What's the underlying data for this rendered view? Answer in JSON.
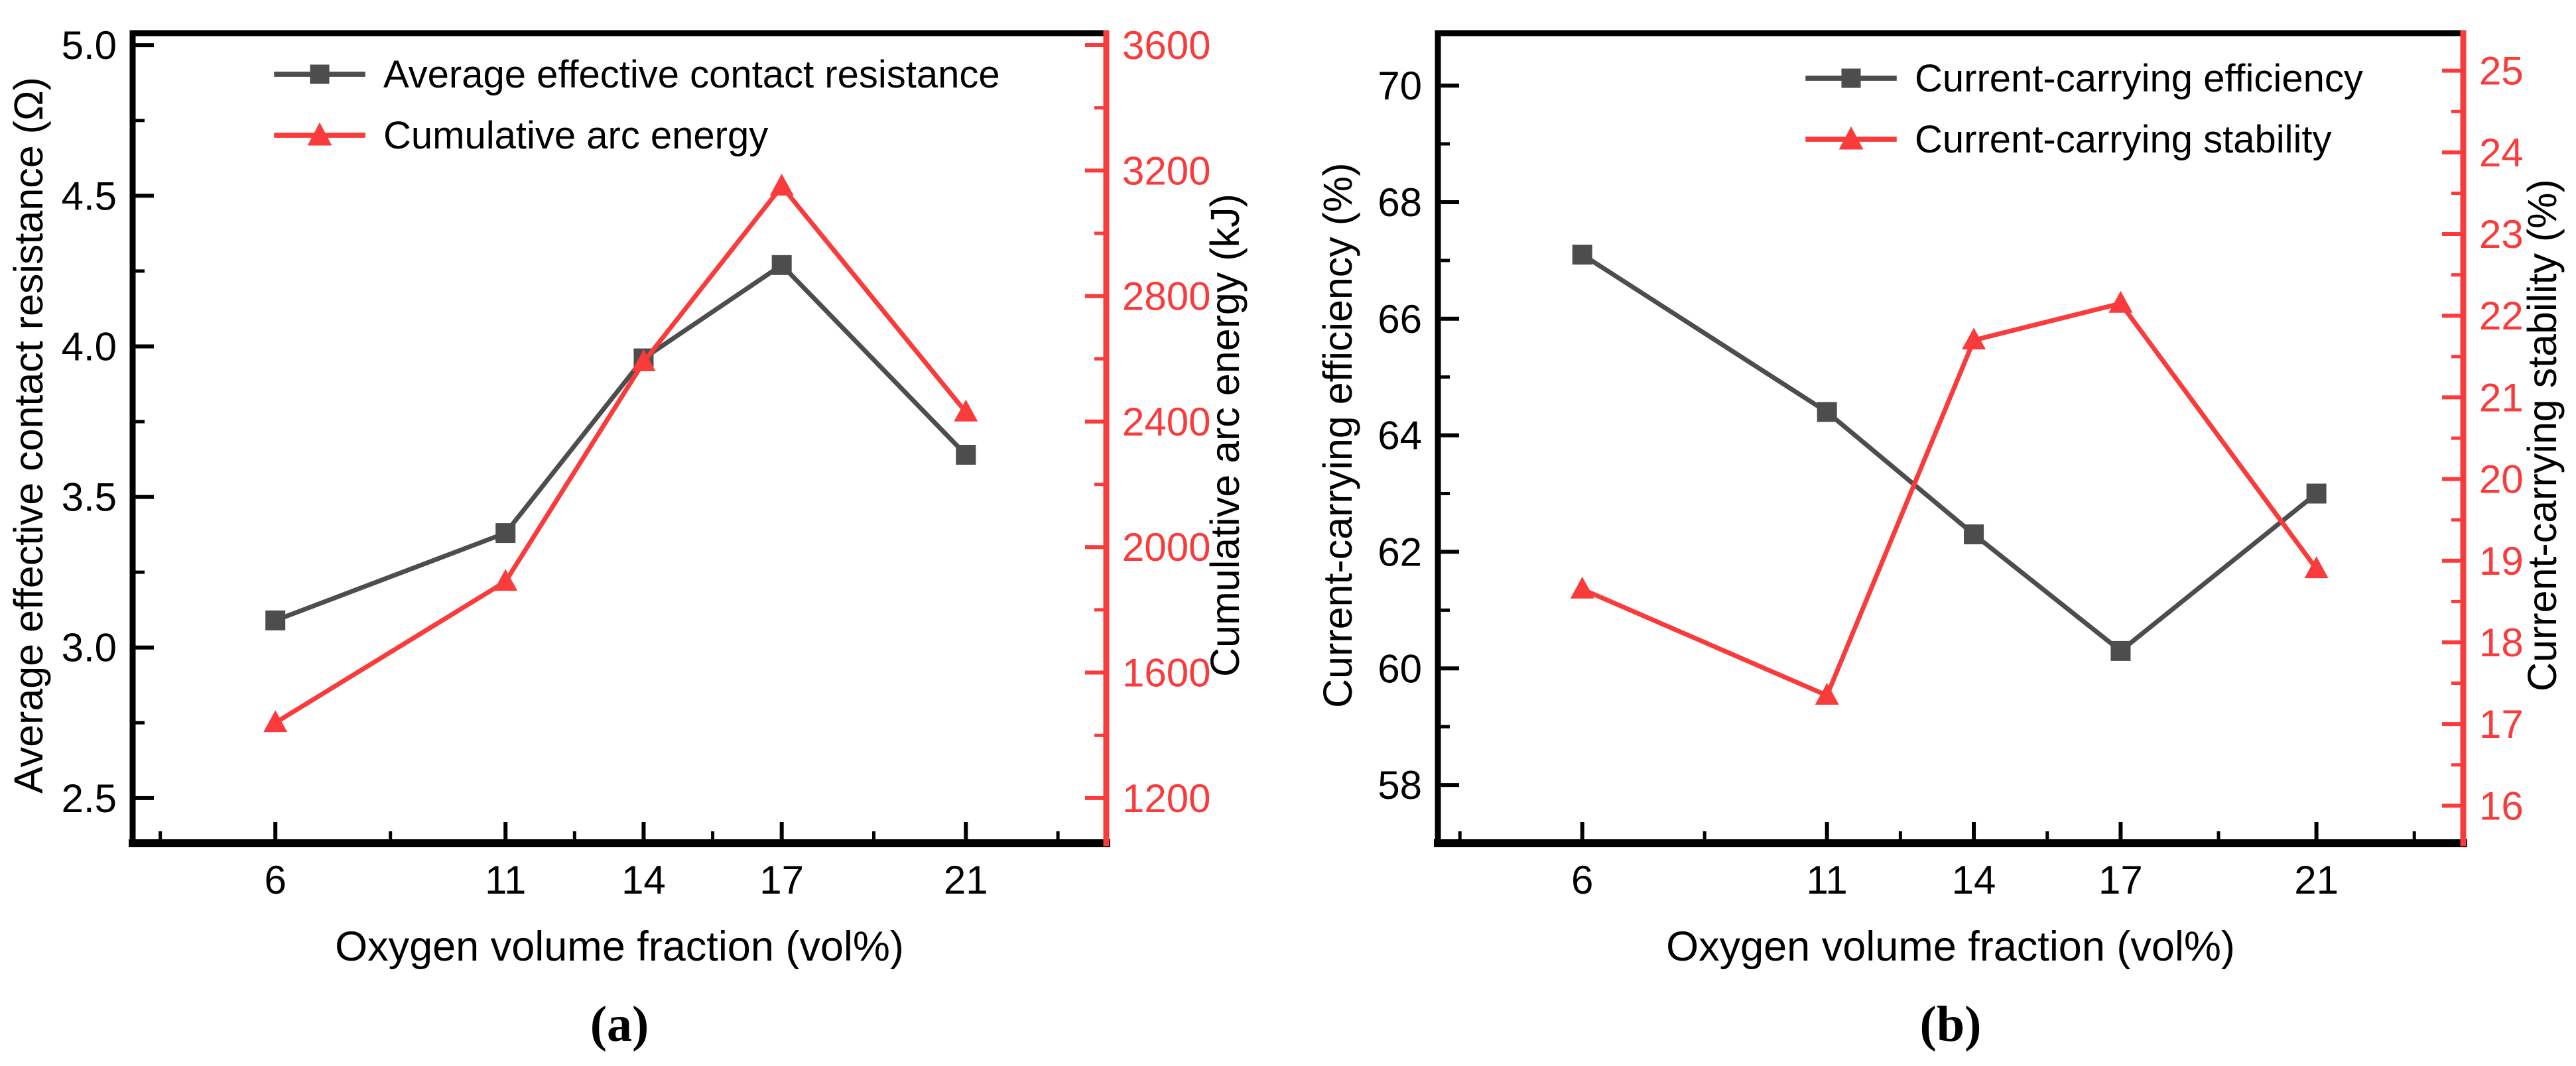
{
  "figure": {
    "background": "#ffffff",
    "axis_color": "#000000",
    "series_black_color": "#4d4d4d",
    "series_red_color": "#f93b3b"
  },
  "chart_data": [
    {
      "type": "line",
      "title": "(a)",
      "xlabel": "Oxygen volume fraction (vol%)",
      "x": [
        6,
        11,
        14,
        17,
        21
      ],
      "xlim": [
        2.9,
        24.05
      ],
      "x_minor_ticks": [
        3.5,
        8.5,
        12.5,
        15.5,
        19,
        23
      ],
      "grid": false,
      "legend_position": "top-inside",
      "axes": {
        "left": {
          "label": "Average effective contact resistance (Ω)",
          "ticks": [
            2.5,
            3.0,
            3.5,
            4.0,
            4.5,
            5.0
          ],
          "minor_step": 0.25,
          "lim": [
            2.35,
            5.04
          ],
          "decimals": 1,
          "color": "#000000"
        },
        "right": {
          "label": "Cumulative arc energy (kJ)",
          "ticks": [
            1200,
            1600,
            2000,
            2400,
            2800,
            3200,
            3600
          ],
          "minor_step": 200,
          "lim": [
            1056,
            3638
          ],
          "decimals": 0,
          "color": "#f93b3b"
        }
      },
      "series": [
        {
          "name": "Average effective contact resistance",
          "axis": "left",
          "marker": "square",
          "color": "#4d4d4d",
          "values": [
            3.09,
            3.38,
            3.96,
            4.27,
            3.64
          ]
        },
        {
          "name": "Cumulative arc energy",
          "axis": "right",
          "marker": "triangle",
          "color": "#f93b3b",
          "values": [
            1440,
            1890,
            2590,
            3150,
            2430
          ]
        }
      ]
    },
    {
      "type": "line",
      "title": "(b)",
      "xlabel": "Oxygen volume fraction (vol%)",
      "x": [
        6,
        11,
        14,
        17,
        21
      ],
      "xlim": [
        3.05,
        24.0
      ],
      "x_minor_ticks": [
        3.5,
        8.5,
        12.5,
        15.5,
        19,
        23
      ],
      "grid": false,
      "legend_position": "top-inside",
      "axes": {
        "left": {
          "label": "Current-carrying efficiency (%)",
          "ticks": [
            58,
            60,
            62,
            64,
            66,
            68,
            70
          ],
          "minor_step": 1,
          "lim": [
            57.0,
            70.9
          ],
          "decimals": 0,
          "color": "#000000"
        },
        "right": {
          "label": "Current-carrying stability (%)",
          "ticks": [
            16,
            17,
            18,
            19,
            20,
            21,
            22,
            23,
            24,
            25
          ],
          "minor_step": 0.5,
          "lim": [
            15.54,
            25.46
          ],
          "decimals": 0,
          "color": "#f93b3b"
        }
      },
      "series": [
        {
          "name": "Current-carrying efficiency",
          "axis": "left",
          "marker": "square",
          "color": "#4d4d4d",
          "values": [
            67.1,
            64.4,
            62.3,
            60.3,
            63.0
          ]
        },
        {
          "name": "Current-carrying stability",
          "axis": "right",
          "marker": "triangle",
          "color": "#f93b3b",
          "values": [
            18.65,
            17.35,
            21.7,
            22.15,
            18.9
          ]
        }
      ]
    }
  ]
}
